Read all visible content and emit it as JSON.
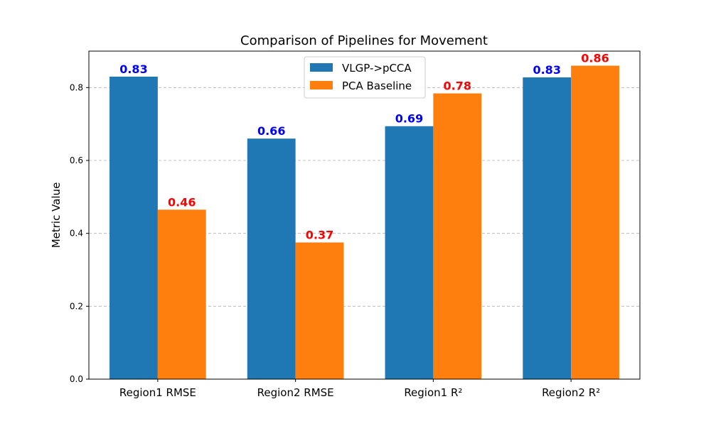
{
  "chart_data": {
    "type": "bar",
    "title": "Comparison of Pipelines for Movement",
    "xlabel": "",
    "ylabel": "Metric Value",
    "categories": [
      "Region1 RMSE",
      "Region2 RMSE",
      "Region1 R²",
      "Region2 R²"
    ],
    "series": [
      {
        "name": "VLGP->pCCA",
        "values": [
          0.83,
          0.66,
          0.694,
          0.828
        ],
        "labels": [
          "0.83",
          "0.66",
          "0.69",
          "0.83"
        ],
        "color": "#1f77b4",
        "label_color": "#0000ff"
      },
      {
        "name": "PCA Baseline",
        "values": [
          0.465,
          0.375,
          0.784,
          0.86
        ],
        "labels": [
          "0.46",
          "0.37",
          "0.78",
          "0.86"
        ],
        "color": "#ff7f0e",
        "label_color": "#ff0000"
      }
    ],
    "ylim": [
      0,
      0.9
    ],
    "yticks": [
      0.0,
      0.2,
      0.4,
      0.6,
      0.8
    ],
    "ytick_labels": [
      "0.0",
      "0.2",
      "0.4",
      "0.6",
      "0.8"
    ],
    "grid": "y-dashed",
    "legend_position": "top-center"
  }
}
